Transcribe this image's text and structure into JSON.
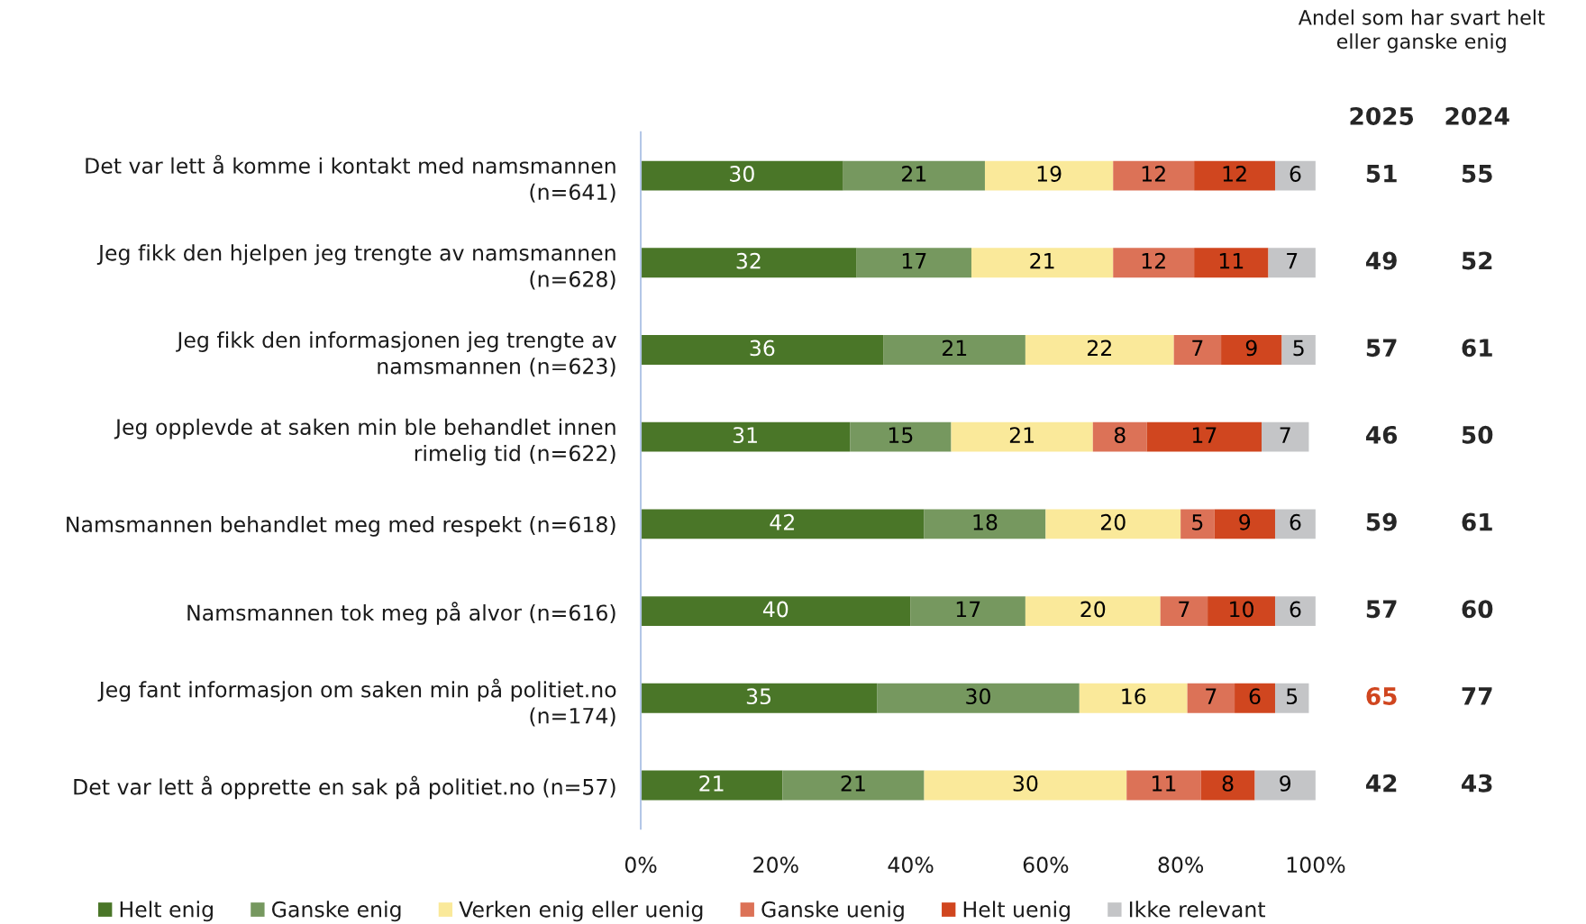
{
  "chart_data": [
    {
      "type": "bar",
      "orientation": "horizontal",
      "stacked": true,
      "categories": [
        "Det var lett å komme i kontakt med namsmannen\n(n=641)",
        "Jeg fikk den hjelpen jeg trengte av namsmannen\n(n=628)",
        "Jeg fikk den informasjonen jeg trengte av\nnamsmannen (n=623)",
        "Jeg opplevde at saken min ble behandlet innen\nrimelig tid (n=622)",
        "Namsmannen behandlet meg med respekt (n=618)",
        "Namsmannen tok meg på alvor (n=616)",
        "Jeg fant informasjon om saken min på politiet.no\n(n=174)",
        "Det var lett å opprette en sak på politiet.no (n=57)"
      ],
      "series": [
        {
          "name": "Helt enig",
          "color": "#4a7628",
          "values": [
            30,
            32,
            36,
            31,
            42,
            40,
            35,
            21
          ]
        },
        {
          "name": "Ganske enig",
          "color": "#76985f",
          "values": [
            21,
            17,
            21,
            15,
            18,
            17,
            30,
            21
          ]
        },
        {
          "name": "Verken enig eller uenig",
          "color": "#fae99a",
          "values": [
            19,
            21,
            22,
            21,
            20,
            20,
            16,
            30
          ]
        },
        {
          "name": "Ganske uenig",
          "color": "#dc7257",
          "values": [
            12,
            12,
            7,
            8,
            5,
            7,
            7,
            11
          ]
        },
        {
          "name": "Helt uenig",
          "color": "#d0461f",
          "values": [
            12,
            11,
            9,
            17,
            9,
            10,
            6,
            8
          ]
        },
        {
          "name": "Ikke relevant",
          "color": "#c4c5c7",
          "values": [
            6,
            7,
            5,
            7,
            6,
            6,
            5,
            9
          ]
        }
      ],
      "xlim": [
        0,
        100
      ],
      "xticks": [
        {
          "value": 0,
          "label": "0%"
        },
        {
          "value": 20,
          "label": "20%"
        },
        {
          "value": 40,
          "label": "40%"
        },
        {
          "value": 60,
          "label": "60%"
        },
        {
          "value": 80,
          "label": "80%"
        },
        {
          "value": 100,
          "label": "100%"
        }
      ],
      "data_labels": true,
      "legend": "bottom"
    },
    {
      "type": "other",
      "title": "Andel som har svart helt\neller ganske enig",
      "annotations": [
        "2025",
        "2024",
        "51",
        "55",
        "49",
        "52",
        "57",
        "61",
        "46",
        "50",
        "59",
        "61",
        "57",
        "60",
        "65",
        "77",
        "42",
        "43"
      ],
      "colors": [
        "#262626",
        "#262626",
        "#262626",
        "#262626",
        "#262626",
        "#262626",
        "#262626",
        "#262626",
        "#262626",
        "#262626",
        "#262626",
        "#262626",
        "#262626",
        "#262626",
        "#d0461f",
        "#262626",
        "#262626",
        "#262626"
      ]
    }
  ]
}
